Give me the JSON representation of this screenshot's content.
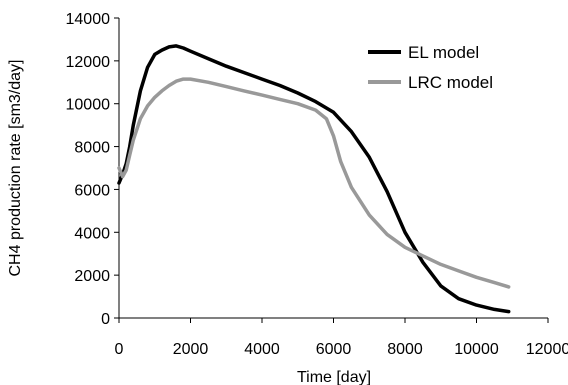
{
  "chart_data": {
    "type": "line",
    "title": "",
    "xlabel": "Time [day]",
    "ylabel": "CH4 production rate  [sm3/day]",
    "xlim": [
      0,
      12000
    ],
    "ylim": [
      0,
      14000
    ],
    "xticks": [
      0,
      2000,
      4000,
      6000,
      8000,
      10000,
      12000
    ],
    "yticks": [
      0,
      2000,
      4000,
      6000,
      8000,
      10000,
      12000,
      14000
    ],
    "grid": false,
    "legend_position": "top-right",
    "series": [
      {
        "name": "EL model",
        "color": "#000000",
        "x": [
          0,
          100,
          200,
          300,
          400,
          600,
          800,
          1000,
          1200,
          1400,
          1600,
          1800,
          2000,
          2500,
          3000,
          3500,
          4000,
          4500,
          5000,
          5500,
          6000,
          6500,
          7000,
          7500,
          8000,
          8500,
          9000,
          9500,
          10000,
          10500,
          10900
        ],
        "y": [
          6300,
          6700,
          7200,
          8000,
          9000,
          10600,
          11700,
          12300,
          12500,
          12650,
          12700,
          12600,
          12450,
          12100,
          11750,
          11450,
          11150,
          10850,
          10500,
          10100,
          9600,
          8700,
          7500,
          5900,
          4000,
          2600,
          1500,
          900,
          600,
          400,
          300
        ]
      },
      {
        "name": "LRC model",
        "color": "#999999",
        "x": [
          0,
          100,
          200,
          300,
          400,
          600,
          800,
          1000,
          1200,
          1400,
          1600,
          1800,
          2000,
          2500,
          3000,
          3500,
          4000,
          4500,
          5000,
          5500,
          5800,
          6000,
          6200,
          6500,
          7000,
          7500,
          8000,
          8500,
          9000,
          9500,
          10000,
          10500,
          10900
        ],
        "y": [
          7000,
          6600,
          6900,
          7600,
          8300,
          9300,
          9900,
          10300,
          10600,
          10850,
          11050,
          11150,
          11150,
          11000,
          10800,
          10600,
          10400,
          10200,
          10000,
          9700,
          9300,
          8500,
          7300,
          6100,
          4800,
          3900,
          3300,
          2900,
          2500,
          2200,
          1900,
          1650,
          1450
        ]
      }
    ]
  }
}
